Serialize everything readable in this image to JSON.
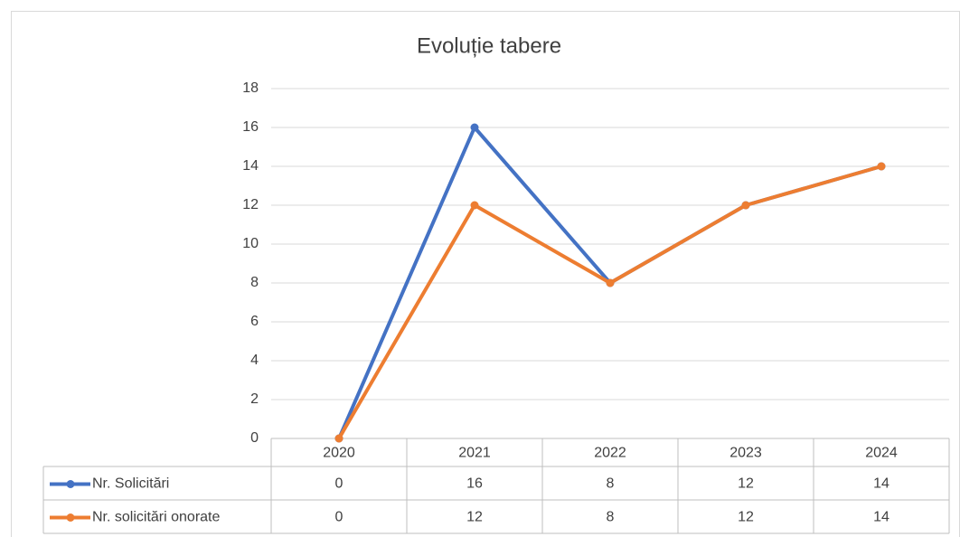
{
  "chart_data": {
    "type": "line",
    "title": "Evoluție tabere",
    "categories": [
      "2020",
      "2021",
      "2022",
      "2023",
      "2024"
    ],
    "series": [
      {
        "name": "Nr. Solicitări",
        "color": "#4472c4",
        "values": [
          0,
          16,
          8,
          12,
          14
        ]
      },
      {
        "name": "Nr. solicitări onorate",
        "color": "#ed7d31",
        "values": [
          0,
          12,
          8,
          12,
          14
        ]
      }
    ],
    "ylim": [
      0,
      18
    ],
    "yticks": [
      0,
      2,
      4,
      6,
      8,
      10,
      12,
      14,
      16,
      18
    ],
    "grid": true,
    "data_table": true
  }
}
